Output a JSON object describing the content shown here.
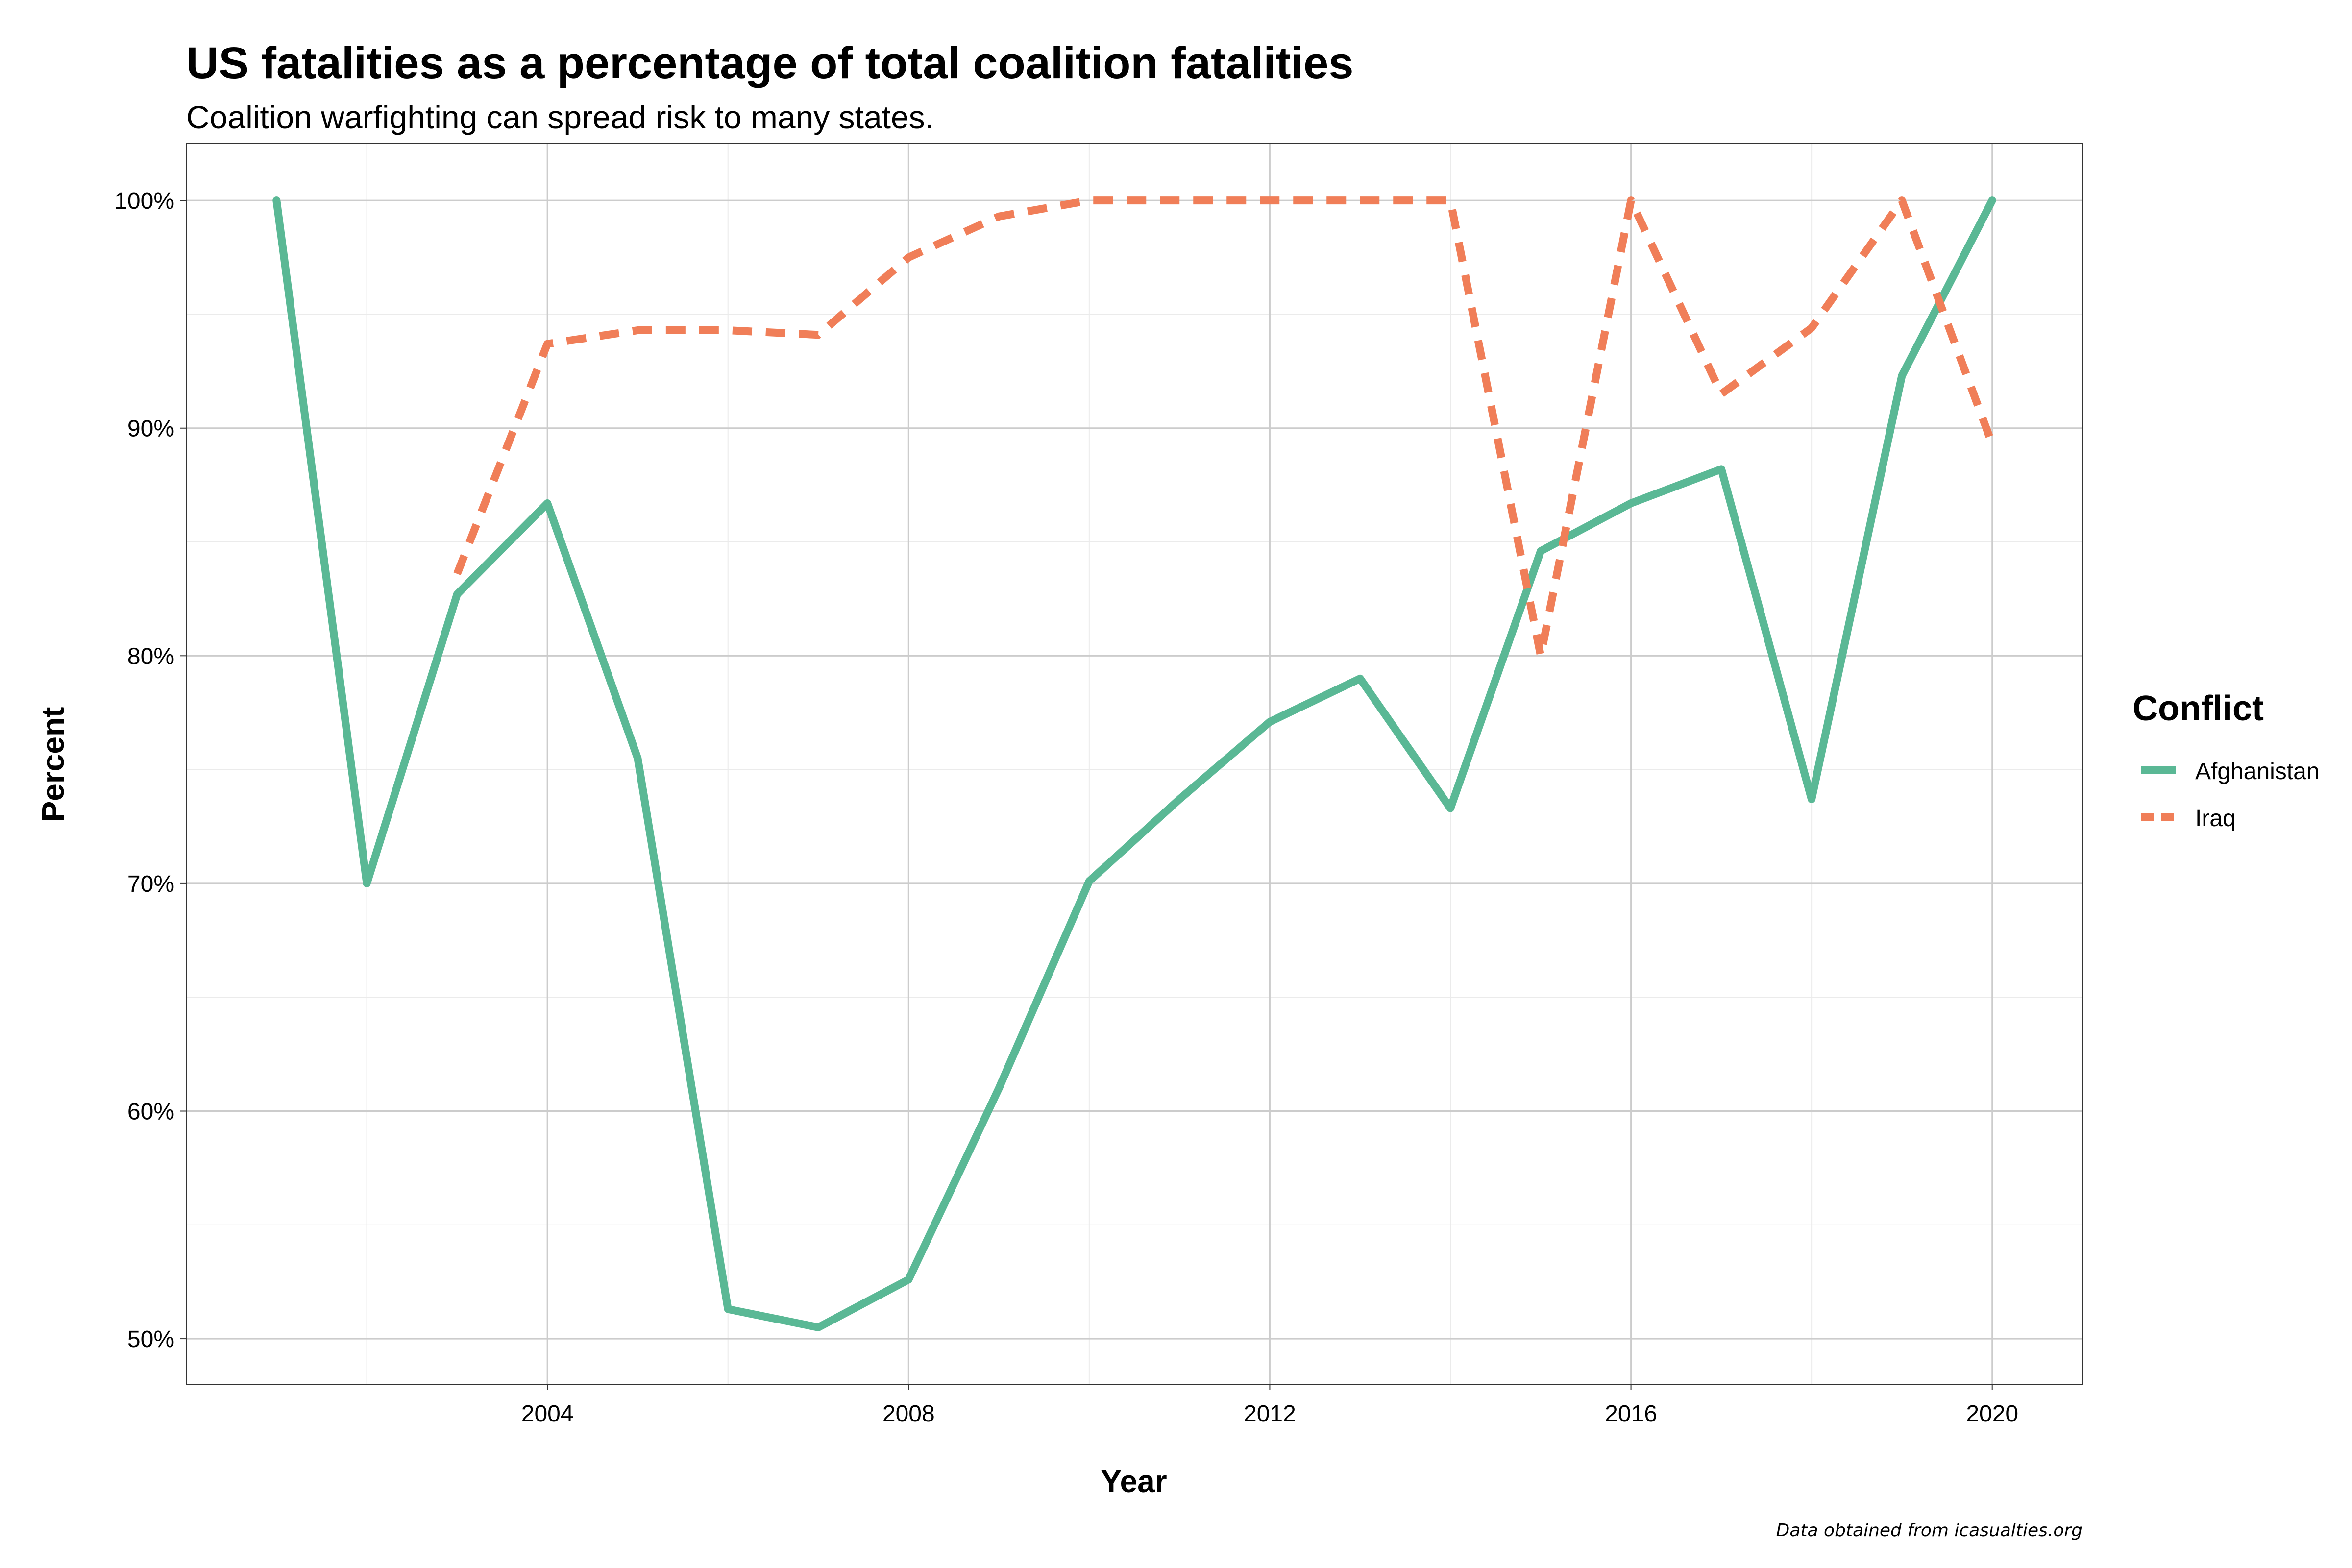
{
  "chart_data": {
    "type": "line",
    "title": "US fatalities as a percentage of total coalition fatalities",
    "subtitle": "Coalition warfighting can spread risk to many states.",
    "xlabel": "Year",
    "ylabel": "Percent",
    "caption": "Data obtained from icasualties.org",
    "xlim": [
      2000,
      2021
    ],
    "ylim": [
      48,
      102.5
    ],
    "x_ticks": [
      2004,
      2008,
      2012,
      2016,
      2020
    ],
    "x_tick_labels": [
      "2004",
      "2008",
      "2012",
      "2016",
      "2020"
    ],
    "y_ticks": [
      50,
      60,
      70,
      80,
      90,
      100
    ],
    "y_tick_labels": [
      "50%",
      "60%",
      "70%",
      "80%",
      "90%",
      "100%"
    ],
    "grid": true,
    "legend": {
      "title": "Conflict",
      "position": "right"
    },
    "series": [
      {
        "name": "Afghanistan",
        "color": "#5ab895",
        "dash": "solid",
        "x": [
          2001,
          2002,
          2003,
          2004,
          2005,
          2006,
          2007,
          2008,
          2009,
          2010,
          2011,
          2012,
          2013,
          2014,
          2015,
          2016,
          2017,
          2018,
          2019,
          2020
        ],
        "y": [
          100,
          70,
          82.7,
          86.7,
          75.5,
          51.3,
          50.5,
          52.6,
          61,
          70.1,
          73.7,
          77.1,
          79,
          73.3,
          84.6,
          86.7,
          88.2,
          73.7,
          92.3,
          100
        ]
      },
      {
        "name": "Iraq",
        "color": "#f07e58",
        "dash": "dashed",
        "x": [
          2003,
          2004,
          2005,
          2006,
          2007,
          2008,
          2009,
          2010,
          2011,
          2012,
          2013,
          2014,
          2015,
          2016,
          2017,
          2018,
          2019,
          2020
        ],
        "y": [
          83.6,
          93.7,
          94.3,
          94.3,
          94.1,
          97.5,
          99.3,
          100,
          100,
          100,
          100,
          100,
          80,
          100,
          91.5,
          94.4,
          100,
          89.3
        ]
      }
    ]
  }
}
